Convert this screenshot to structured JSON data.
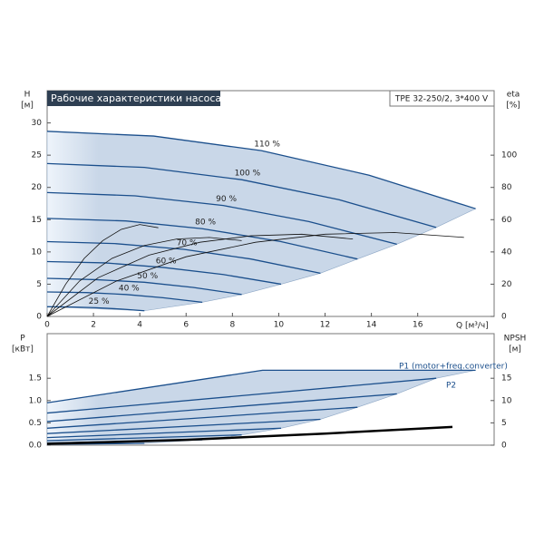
{
  "chart_data": [
    {
      "type": "line",
      "title": "Рабочие характеристики насоса",
      "subtitle": "TPE 32-250/2, 3*400 V",
      "ylabel": "H",
      "yunit": "[м]",
      "y2label": "eta",
      "y2unit": "[%]",
      "xlabel": "Q [м³/ч]",
      "xlim": [
        0,
        19.3
      ],
      "xticks": [
        0,
        2,
        4,
        6,
        8,
        10,
        12,
        14,
        16
      ],
      "ylim": [
        0,
        35
      ],
      "yticks": [
        0,
        5,
        10,
        15,
        20,
        25,
        30
      ],
      "y2lim": [
        0,
        140
      ],
      "y2ticks": [
        0,
        20,
        40,
        60,
        80,
        100
      ],
      "series": [
        {
          "name": "110 %",
          "color": "#1b4f8c",
          "x": [
            0,
            4.6,
            9.25,
            13.9,
            18.5
          ],
          "values": [
            28.7,
            27.96,
            25.7,
            21.9,
            16.7
          ]
        },
        {
          "name": "100 %",
          "color": "#1b4f8c",
          "x": [
            0,
            4.2,
            8.4,
            12.6,
            16.8
          ],
          "values": [
            23.7,
            23.1,
            21.2,
            18.1,
            13.8
          ]
        },
        {
          "name": "90 %",
          "color": "#1b4f8c",
          "x": [
            0,
            3.8,
            7.6,
            11.3,
            15.1
          ],
          "values": [
            19.2,
            18.7,
            17.2,
            14.7,
            11.2
          ]
        },
        {
          "name": "80 %",
          "color": "#1b4f8c",
          "x": [
            0,
            3.4,
            6.7,
            10.1,
            13.4
          ],
          "values": [
            15.2,
            14.8,
            13.6,
            11.6,
            8.9
          ]
        },
        {
          "name": "70 %",
          "color": "#1b4f8c",
          "x": [
            0,
            2.9,
            5.9,
            8.8,
            11.8
          ],
          "values": [
            11.6,
            11.3,
            10.4,
            8.9,
            6.7
          ]
        },
        {
          "name": "60 %",
          "color": "#1b4f8c",
          "x": [
            0,
            2.5,
            5.0,
            7.6,
            10.1
          ],
          "values": [
            8.5,
            8.3,
            7.6,
            6.5,
            5.0
          ]
        },
        {
          "name": "50 %",
          "color": "#1b4f8c",
          "x": [
            0,
            2.1,
            4.2,
            6.3,
            8.4
          ],
          "values": [
            5.9,
            5.7,
            5.3,
            4.5,
            3.4
          ]
        },
        {
          "name": "40 %",
          "color": "#1b4f8c",
          "x": [
            0,
            1.7,
            3.4,
            5.0,
            6.7
          ],
          "values": [
            3.8,
            3.7,
            3.4,
            2.9,
            2.2
          ]
        },
        {
          "name": "25 %",
          "color": "#1b4f8c",
          "x": [
            0,
            1.1,
            2.1,
            3.2,
            4.2
          ],
          "values": [
            1.5,
            1.46,
            1.35,
            1.14,
            0.88
          ]
        },
        {
          "axis": "y2",
          "color": "#111111",
          "x": [
            0,
            3,
            6,
            9,
            12,
            15,
            18
          ],
          "values": [
            0,
            22,
            37,
            46,
            51,
            52,
            49
          ]
        },
        {
          "axis": "y2",
          "color": "#111111",
          "x": [
            0,
            2.2,
            4.4,
            6.6,
            8.8,
            11,
            13.2
          ],
          "values": [
            0,
            24,
            38,
            46,
            50,
            51,
            48
          ]
        },
        {
          "axis": "y2",
          "color": "#111111",
          "x": [
            0,
            1.4,
            2.8,
            4.2,
            5.6,
            7,
            8.4
          ],
          "values": [
            0,
            22,
            36,
            44,
            48,
            49,
            47
          ]
        },
        {
          "axis": "y2",
          "color": "#111111",
          "x": [
            0,
            0.8,
            1.6,
            2.4,
            3.2,
            4.0,
            4.8
          ],
          "values": [
            0,
            20,
            36,
            47,
            54,
            57,
            55
          ]
        }
      ]
    },
    {
      "type": "line",
      "ylabel": "P",
      "yunit": "[кВт]",
      "y2label": "NPSH",
      "y2unit": "[м]",
      "annotations": [
        "P1 (motor+freq.converter)",
        "P2"
      ],
      "xlim": [
        0,
        19.3
      ],
      "ylim": [
        0,
        2.5
      ],
      "yticks": [
        {
          "value": 0,
          "label": "0.0"
        },
        0.5,
        {
          "value": 1,
          "label": "1.0"
        },
        1.5
      ],
      "y2lim": [
        0,
        25
      ],
      "y2ticks": [
        0,
        5,
        10,
        15
      ],
      "series": [
        {
          "color": "#1b4f8c",
          "x": [
            0,
            9.3,
            18.5
          ],
          "values": [
            0.95,
            1.68,
            1.68
          ]
        },
        {
          "color": "#1b4f8c",
          "x": [
            0,
            16.8
          ],
          "values": [
            0.72,
            1.5
          ]
        },
        {
          "color": "#1b4f8c",
          "x": [
            0,
            15.1
          ],
          "values": [
            0.53,
            1.15
          ]
        },
        {
          "color": "#1b4f8c",
          "x": [
            0,
            13.4
          ],
          "values": [
            0.38,
            0.85
          ]
        },
        {
          "color": "#1b4f8c",
          "x": [
            0,
            11.8
          ],
          "values": [
            0.26,
            0.58
          ]
        },
        {
          "color": "#1b4f8c",
          "x": [
            0,
            10.1
          ],
          "values": [
            0.17,
            0.38
          ]
        },
        {
          "color": "#1b4f8c",
          "x": [
            0,
            8.4
          ],
          "values": [
            0.1,
            0.23
          ]
        },
        {
          "color": "#1b4f8c",
          "x": [
            0,
            6.7
          ],
          "values": [
            0.05,
            0.12
          ]
        },
        {
          "color": "#1b4f8c",
          "x": [
            0,
            4.2
          ],
          "values": [
            0.02,
            0.04
          ]
        },
        {
          "axis": "y2",
          "color": "#000000",
          "x": [
            0,
            6,
            12,
            17.5
          ],
          "values": [
            0.3,
            1.2,
            2.6,
            4.1
          ]
        }
      ]
    }
  ]
}
